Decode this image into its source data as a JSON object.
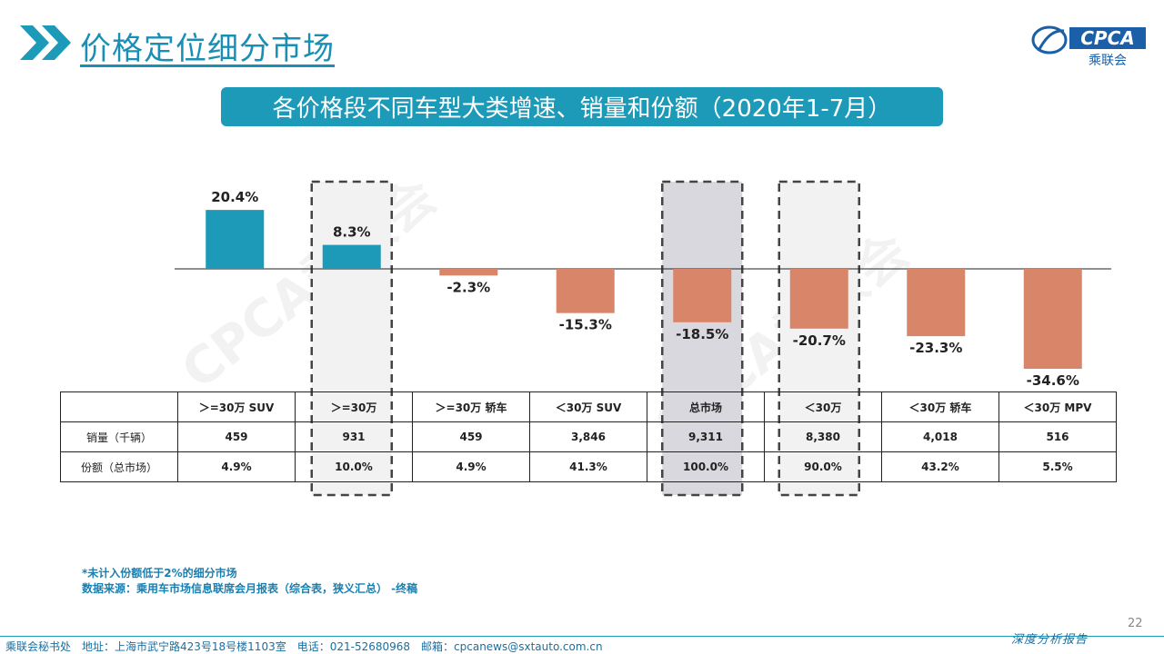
{
  "header": {
    "page_title": "价格定位细分市场",
    "logo_text": "CPCA",
    "logo_sub": "乘联会"
  },
  "chart_data": {
    "type": "bar",
    "title": "各价格段不同车型大类增速、销量和份额（2020年1-7月）",
    "categories": [
      ">=30万 SUV",
      ">=30万",
      ">=30万 轿车",
      "<30万 SUV",
      "总市场",
      "<30万",
      "<30万 轿车",
      "<30万 MPV"
    ],
    "category_labels": [
      "＞=30万 SUV",
      "＞=30万",
      "＞=30万 轿车",
      "＜30万 SUV",
      "总市场",
      "＜30万",
      "＜30万 轿车",
      "＜30万 MPV"
    ],
    "values": [
      20.4,
      8.3,
      -2.3,
      -15.3,
      -18.5,
      -20.7,
      -23.3,
      -34.6
    ],
    "value_labels": [
      "20.4%",
      "8.3%",
      "-2.3%",
      "-15.3%",
      "-18.5%",
      "-20.7%",
      "-23.3%",
      "-34.6%"
    ],
    "unit": "%",
    "ylim": [
      -35,
      25
    ],
    "colors": {
      "positive": "#1d9ab8",
      "negative": "#d9856a",
      "highlight_bg": "#d8d8de",
      "dashed_box": "#444444"
    },
    "highlighted": [
      ">=30万",
      "总市场",
      "<30万"
    ],
    "shaded": [
      "总市场"
    ],
    "table": {
      "rows": [
        {
          "label": "销量（千辆）",
          "values": [
            "459",
            "931",
            "459",
            "3,846",
            "9,311",
            "8,380",
            "4,018",
            "516"
          ]
        },
        {
          "label": "份额（总市场）",
          "values": [
            "4.9%",
            "10.0%",
            "4.9%",
            "41.3%",
            "100.0%",
            "90.0%",
            "43.2%",
            "5.5%"
          ]
        }
      ]
    }
  },
  "notes": {
    "line1": "*未计入份额低于2%的细分市场",
    "line2": "数据来源：乘用车市场信息联席会月报表（综合表，狭义汇总） -终稿"
  },
  "page_number": "22",
  "footer": {
    "address": "乘联会秘书处　地址：上海市武宁路423号18号楼1103室　电话：021-52680968　邮箱：cpcanews@sxtauto.com.cn",
    "tagline": "深度分析报告"
  },
  "watermark": "CPCA乘联会"
}
